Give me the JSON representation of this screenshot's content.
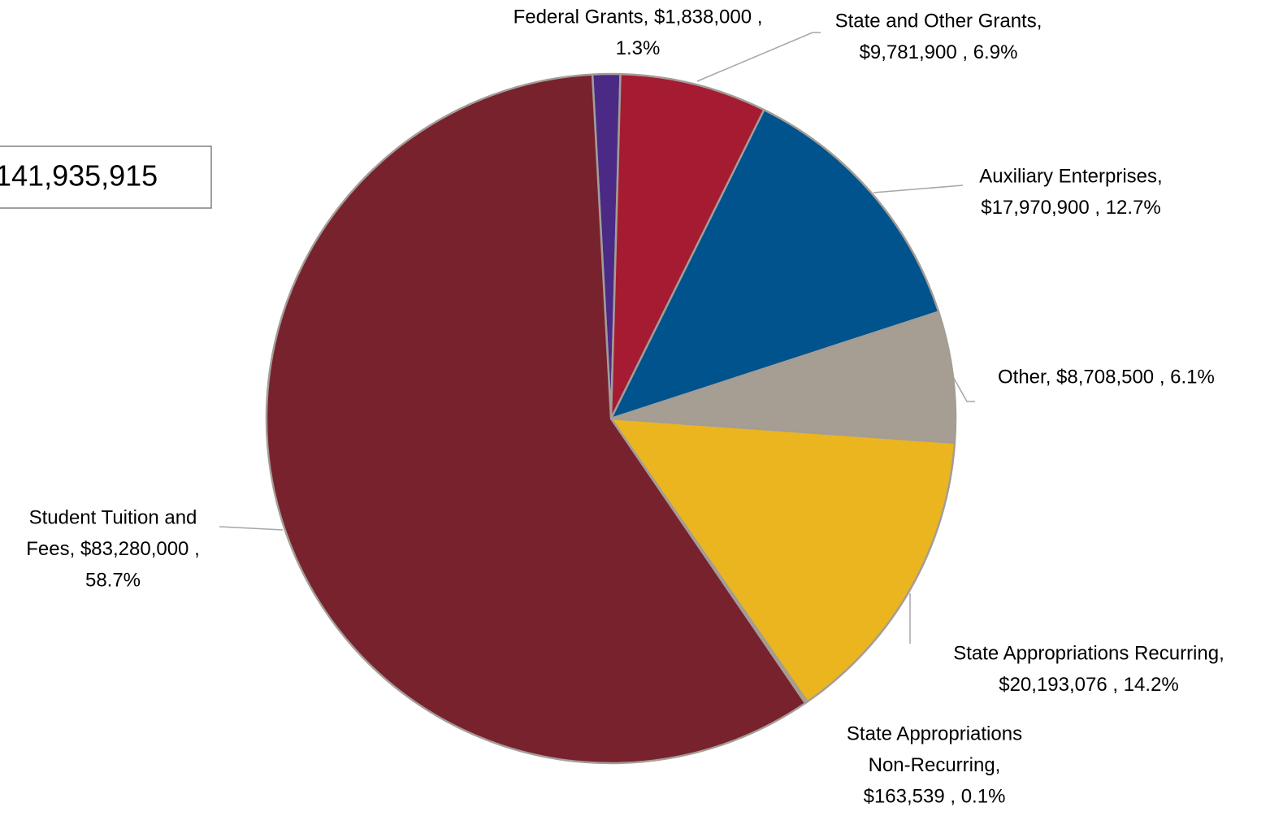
{
  "chart_data": {
    "type": "pie",
    "annotation": "141,935,915",
    "values": [
      1838000,
      9781900,
      17970900,
      8708500,
      20193076,
      163539,
      83280000
    ],
    "labels": [
      [
        "Federal Grants, $1,838,000 ,",
        "1.3%"
      ],
      [
        "State and Other Grants,",
        "$9,781,900 , 6.9%"
      ],
      [
        "Auxiliary Enterprises,",
        "$17,970,900 , 12.7%"
      ],
      [
        "Other, $8,708,500 , 6.1%"
      ],
      [
        "State Appropriations Recurring,",
        "$20,193,076 , 14.2%"
      ],
      [
        "State Appropriations",
        "Non-Recurring,",
        "$163,539 , 0.1%"
      ],
      [
        "Student Tuition and",
        "Fees, $83,280,000 ,",
        "58.7%"
      ]
    ],
    "colors": [
      "#4b2a86",
      "#a51b32",
      "#00538c",
      "#a69d93",
      "#ebb520",
      "#c9a64a",
      "#78222e"
    ]
  }
}
